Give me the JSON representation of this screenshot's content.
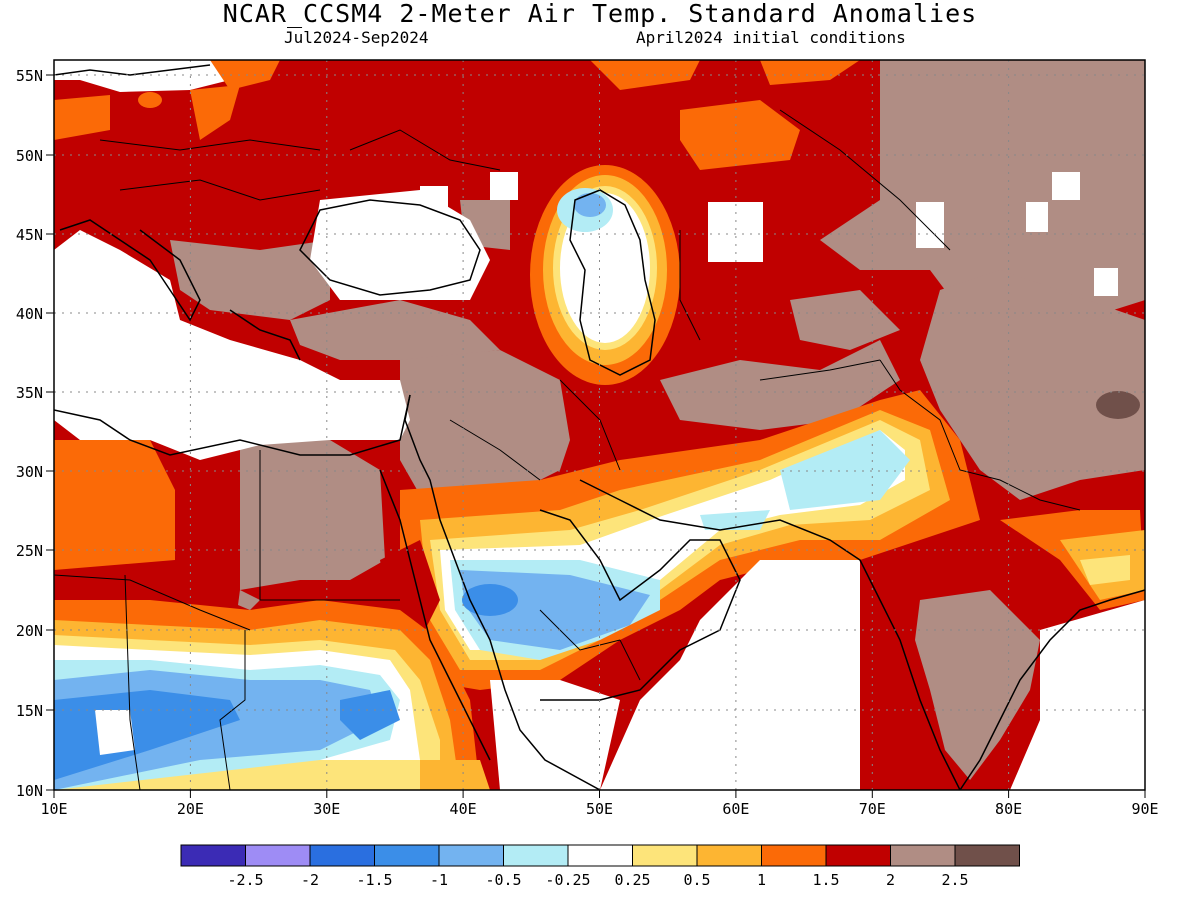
{
  "title": "NCAR_CCSM4 2-Meter Air Temp. Standard Anomalies",
  "subtitle_left": "Jul2024-Sep2024",
  "subtitle_right": "April2024 initial conditions",
  "lat_labels": [
    "10N",
    "15N",
    "20N",
    "25N",
    "30N",
    "35N",
    "40N",
    "45N",
    "50N",
    "55N"
  ],
  "lon_labels": [
    "10E",
    "20E",
    "30E",
    "40E",
    "50E",
    "60E",
    "70E",
    "80E",
    "90E"
  ],
  "legend": {
    "colors": [
      "#3b2bb5",
      "#9e8cf5",
      "#2a6fe0",
      "#3b8ee8",
      "#73b3f0",
      "#b3ecf5",
      "#ffffff",
      "#fde47a",
      "#fdb532",
      "#fb6a07",
      "#c00000",
      "#b08d84",
      "#70504a"
    ],
    "labels": [
      "-2.5",
      "-2",
      "-1.5",
      "-1",
      "-0.5",
      "-0.25",
      "0.25",
      "0.5",
      "1",
      "1.5",
      "2",
      "2.5"
    ]
  },
  "colors": {
    "brown": "#b08d84",
    "darkred": "#c00000",
    "orange": "#fb6a07",
    "lightorange": "#fdb532",
    "yellow": "#fde47a",
    "lightblue": "#b3ecf5",
    "midblue": "#73b3f0",
    "blue": "#3b8ee8",
    "darkbrown": "#70504a"
  }
}
